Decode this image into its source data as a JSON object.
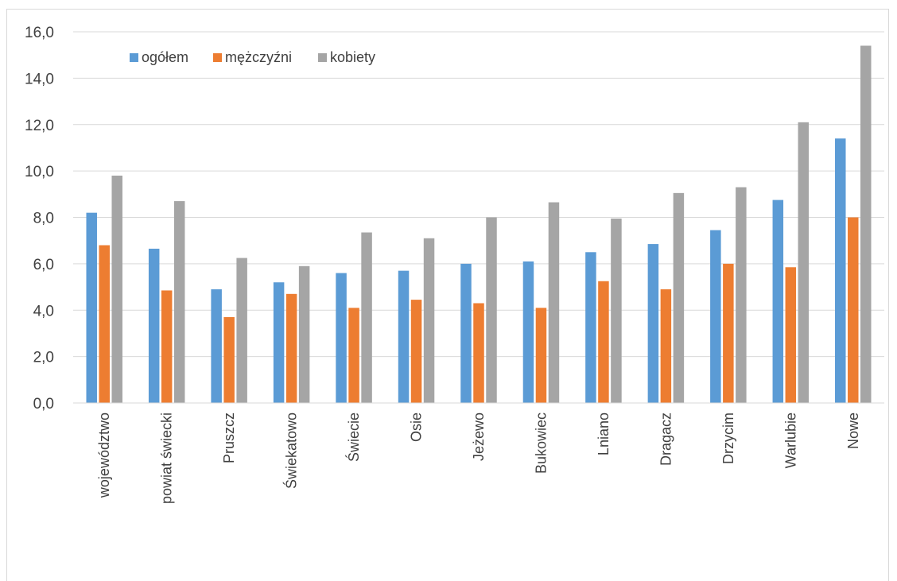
{
  "chart_data": {
    "type": "bar",
    "title": "",
    "xlabel": "",
    "ylabel": "",
    "ylim": [
      0,
      16
    ],
    "y_ticks": [
      "0,0",
      "2,0",
      "4,0",
      "6,0",
      "8,0",
      "10,0",
      "12,0",
      "14,0",
      "16,0"
    ],
    "grid": true,
    "legend_position": "top-left",
    "categories": [
      "województwo",
      "powiat świecki",
      "Pruszcz",
      "Świekatowo",
      "Świecie",
      "Osie",
      "Jeżewo",
      "Bukowiec",
      "Lniano",
      "Dragacz",
      "Drzycim",
      "Warlubie",
      "Nowe"
    ],
    "series": [
      {
        "name": "ogółem",
        "color": "#5b9bd5",
        "values": [
          8.2,
          6.65,
          4.9,
          5.2,
          5.6,
          5.7,
          6.0,
          6.1,
          6.5,
          6.85,
          7.45,
          8.75,
          11.4
        ]
      },
      {
        "name": "mężczyźni",
        "color": "#ed7d31",
        "values": [
          6.8,
          4.85,
          3.7,
          4.7,
          4.1,
          4.45,
          4.3,
          4.1,
          5.25,
          4.9,
          6.0,
          5.85,
          8.0
        ]
      },
      {
        "name": "kobiety",
        "color": "#a5a5a5",
        "values": [
          9.8,
          8.7,
          6.25,
          5.9,
          7.35,
          7.1,
          8.0,
          8.65,
          7.95,
          9.05,
          9.3,
          12.1,
          15.4
        ]
      }
    ]
  }
}
